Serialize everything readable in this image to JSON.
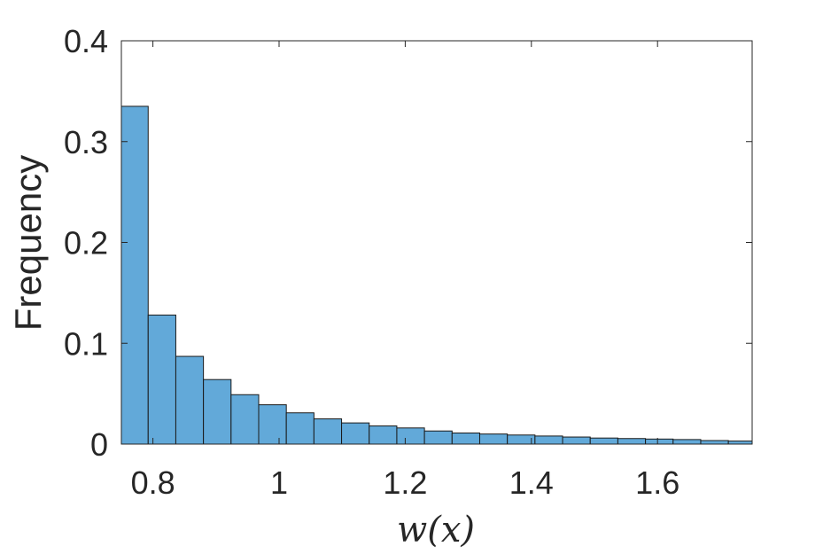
{
  "chart_data": {
    "type": "bar",
    "title": "",
    "xlabel": "w(x)",
    "ylabel": "Frequency",
    "xlim": [
      0.75,
      1.75
    ],
    "ylim": [
      0,
      0.4
    ],
    "xticks": [
      0.8,
      1.0,
      1.2,
      1.4,
      1.6
    ],
    "xtick_labels": [
      "0.8",
      "1",
      "1.2",
      "1.4",
      "1.6"
    ],
    "yticks": [
      0,
      0.1,
      0.2,
      0.3,
      0.4
    ],
    "ytick_labels": [
      "0",
      "0.1",
      "0.2",
      "0.3",
      "0.4"
    ],
    "bin_edges": [
      0.7487,
      0.7925,
      0.8363,
      0.8801,
      0.9239,
      0.9677,
      1.0115,
      1.0553,
      1.0991,
      1.1429,
      1.1867,
      1.2305,
      1.2743,
      1.3181,
      1.3619,
      1.4057,
      1.4495,
      1.4933,
      1.5371,
      1.5809,
      1.6247,
      1.6685,
      1.7123,
      1.7561
    ],
    "values": [
      0.335,
      0.128,
      0.087,
      0.064,
      0.049,
      0.039,
      0.031,
      0.025,
      0.021,
      0.018,
      0.016,
      0.013,
      0.011,
      0.01,
      0.009,
      0.008,
      0.007,
      0.006,
      0.0055,
      0.005,
      0.0045,
      0.0035,
      0.003
    ],
    "bar_color": "#62A9D9",
    "edge_color": "#1a1a1a",
    "grid": false,
    "legend": "none"
  }
}
